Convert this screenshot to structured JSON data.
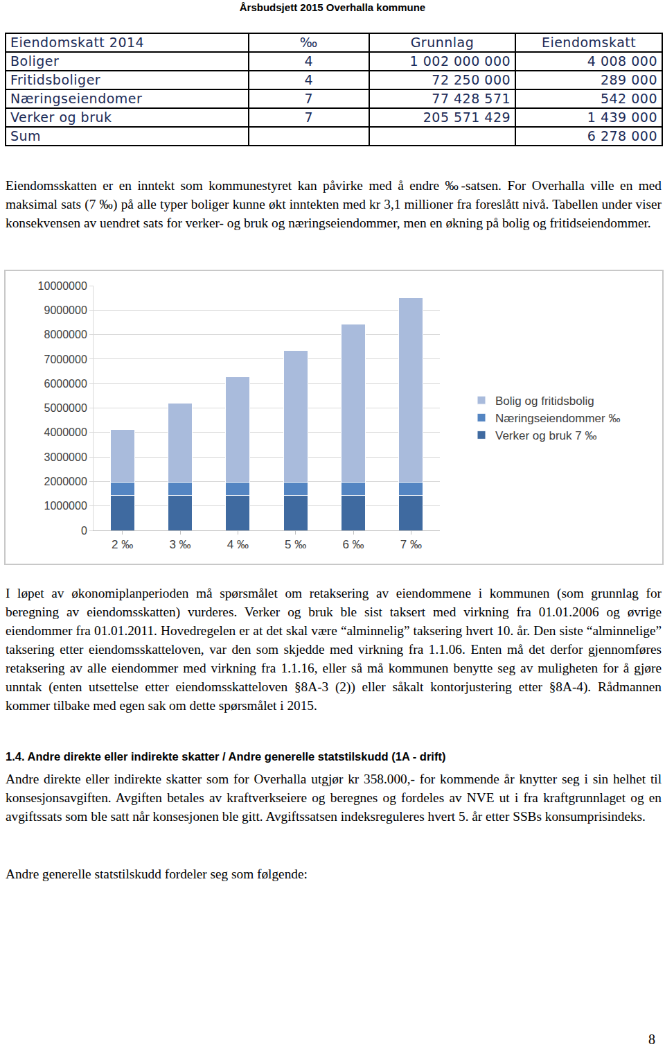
{
  "header": {
    "title": "Årsbudsjett 2015 Overhalla kommune"
  },
  "table": {
    "columns": [
      "Eiendomskatt 2014",
      "‰",
      "Grunnlag",
      "Eiendomskatt"
    ],
    "rows": [
      [
        "Boliger",
        "4",
        "1 002 000 000",
        "4 008 000"
      ],
      [
        "Fritidsboliger",
        "4",
        "72 250 000",
        "289 000"
      ],
      [
        "Næringseiendomer",
        "7",
        "77 428 571",
        "542 000"
      ],
      [
        "Verker og bruk",
        "7",
        "205 571 429",
        "1 439 000"
      ],
      [
        "Sum",
        "",
        "",
        "6 278 000"
      ]
    ]
  },
  "paragraphs_before_chart": [
    "Eiendomsskatten er en inntekt som kommunestyret kan påvirke med å endre ‰-satsen. For Overhalla ville en med maksimal sats (7 ‰) på alle typer boliger kunne økt inntekten med kr 3,1 millioner fra foreslått nivå. Tabellen under viser konsekvensen av uendret sats for verker- og bruk og næringseiendommer, men en økning på bolig og fritidseiendommer."
  ],
  "chart_data": {
    "type": "bar",
    "stacked": true,
    "categories": [
      "2 ‰",
      "3 ‰",
      "4 ‰",
      "5 ‰",
      "6 ‰",
      "7 ‰"
    ],
    "series": [
      {
        "name": "Verker og bruk 7 ‰",
        "color": "#3f6aa0",
        "values": [
          1439000,
          1439000,
          1439000,
          1439000,
          1439000,
          1439000
        ]
      },
      {
        "name": "Næringseiendommer ‰",
        "color": "#5485c2",
        "values": [
          542000,
          542000,
          542000,
          542000,
          542000,
          542000
        ]
      },
      {
        "name": "Bolig og fritidsbolig",
        "color": "#a9bbdc",
        "values": [
          2148500,
          3222750,
          4297000,
          5371250,
          6445500,
          7519750
        ]
      }
    ],
    "ylim": [
      0,
      10000000
    ],
    "yticks": [
      0,
      1000000,
      2000000,
      3000000,
      4000000,
      5000000,
      6000000,
      7000000,
      8000000,
      9000000,
      10000000
    ],
    "grid": true,
    "legend": "right"
  },
  "paragraphs_after_chart": [
    "I løpet av økonomiplanperioden må spørsmålet om retaksering av eiendommene i kommunen (som grunnlag for beregning av eiendomsskatten) vurderes. Verker og bruk ble sist taksert med virkning fra 01.01.2006 og øvrige eiendommer fra 01.01.2011. Hovedregelen er at det skal være “alminnelig” taksering hvert 10. år. Den siste “alminnelige” taksering etter eiendomsskatteloven, var den som skjedde med virkning fra 1.1.06. Enten må det derfor gjennomføres retaksering av alle eiendommer med virkning fra 1.1.16, eller så må kommunen benytte seg av muligheten for å gjøre unntak (enten utsettelse etter eiendomsskatteloven §8A-3 (2)) eller såkalt kontorjustering etter §8A-4). Rådmannen kommer tilbake med egen sak om dette spørsmålet i 2015."
  ],
  "section": {
    "heading": "1.4.  Andre direkte eller indirekte skatter / Andre generelle statstilskudd (1A - drift)",
    "paragraphs": [
      "Andre direkte eller indirekte skatter som for Overhalla utgjør kr 358.000,- for kommende år knytter seg i sin helhet til konsesjonsavgiften.  Avgiften betales av kraftverkseiere og beregnes og fordeles av NVE ut i fra kraftgrunnlaget og en avgiftssats som ble satt når konsesjonen ble gitt. Avgiftssatsen indeksreguleres hvert 5. år etter SSBs konsumprisindeks.",
      "Andre generelle statstilskudd fordeler seg som følgende:"
    ]
  },
  "page_number": "8"
}
